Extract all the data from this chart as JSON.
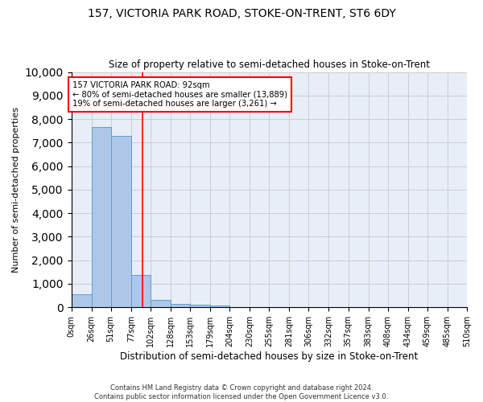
{
  "title": "157, VICTORIA PARK ROAD, STOKE-ON-TRENT, ST6 6DY",
  "subtitle": "Size of property relative to semi-detached houses in Stoke-on-Trent",
  "xlabel": "Distribution of semi-detached houses by size in Stoke-on-Trent",
  "ylabel": "Number of semi-detached properties",
  "footer": "Contains HM Land Registry data © Crown copyright and database right 2024.\nContains public sector information licensed under the Open Government Licence v3.0.",
  "bin_edges": [
    0,
    26,
    51,
    77,
    102,
    128,
    153,
    179,
    204,
    230,
    255,
    281,
    306,
    332,
    357,
    383,
    408,
    434,
    459,
    485,
    510
  ],
  "bar_heights": [
    550,
    7650,
    7300,
    1380,
    310,
    155,
    115,
    80,
    0,
    0,
    0,
    0,
    0,
    0,
    0,
    0,
    0,
    0,
    0,
    0
  ],
  "bar_color": "#aec6e8",
  "bar_edgecolor": "#5a9fd4",
  "vline_x": 92,
  "vline_color": "red",
  "ylim": [
    0,
    10000
  ],
  "yticks": [
    0,
    1000,
    2000,
    3000,
    4000,
    5000,
    6000,
    7000,
    8000,
    9000,
    10000
  ],
  "annotation_text": "157 VICTORIA PARK ROAD: 92sqm\n← 80% of semi-detached houses are smaller (13,889)\n19% of semi-detached houses are larger (3,261) →",
  "annotation_box_color": "white",
  "annotation_box_edgecolor": "red",
  "grid_color": "#cccccc",
  "bg_color": "#e8eef8"
}
